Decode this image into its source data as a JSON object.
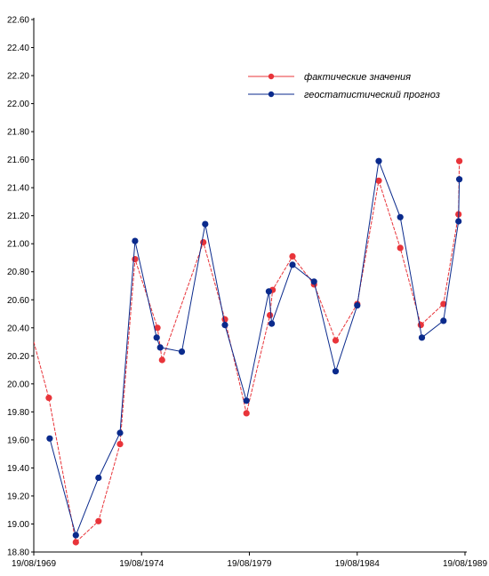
{
  "chart_data": {
    "type": "line",
    "title": "",
    "xlabel": "",
    "ylabel": "",
    "ylim": [
      18.8,
      22.6
    ],
    "y_ticks": [
      "18.80",
      "19.00",
      "19.20",
      "19.40",
      "19.60",
      "19.80",
      "20.00",
      "20.20",
      "20.40",
      "20.60",
      "20.80",
      "21.00",
      "21.20",
      "21.40",
      "21.60",
      "21.80",
      "22.00",
      "22.20",
      "22.40",
      "22.60"
    ],
    "xlim": [
      "1969-08-19",
      "1989-08-19"
    ],
    "x_ticks": [
      "19/08/1969",
      "19/08/1974",
      "19/08/1979",
      "19/08/1984",
      "19/08/1989"
    ],
    "grid": false,
    "legend_position": "top-right",
    "series": [
      {
        "name": "фактические значения",
        "color": "#e8343a",
        "points": [
          {
            "x": "1969-08-19",
            "y": 20.3
          },
          {
            "x": "1970-05-01",
            "y": 19.9
          },
          {
            "x": "1971-08-01",
            "y": 18.87
          },
          {
            "x": "1972-08-19",
            "y": 19.02
          },
          {
            "x": "1973-08-19",
            "y": 19.57
          },
          {
            "x": "1974-05-01",
            "y": 20.89
          },
          {
            "x": "1975-05-15",
            "y": 20.4
          },
          {
            "x": "1975-08-01",
            "y": 20.17
          },
          {
            "x": "1977-07-01",
            "y": 21.01
          },
          {
            "x": "1978-07-01",
            "y": 20.46
          },
          {
            "x": "1979-07-01",
            "y": 19.79
          },
          {
            "x": "1980-08-01",
            "y": 20.49
          },
          {
            "x": "1980-09-15",
            "y": 20.67
          },
          {
            "x": "1981-08-19",
            "y": 20.91
          },
          {
            "x": "1982-08-19",
            "y": 20.71
          },
          {
            "x": "1983-08-19",
            "y": 20.31
          },
          {
            "x": "1984-08-19",
            "y": 20.57
          },
          {
            "x": "1985-08-19",
            "y": 21.45
          },
          {
            "x": "1986-08-19",
            "y": 20.97
          },
          {
            "x": "1987-08-01",
            "y": 20.42
          },
          {
            "x": "1988-08-19",
            "y": 20.57
          },
          {
            "x": "1989-05-01",
            "y": 21.21
          },
          {
            "x": "1989-05-15",
            "y": 21.59
          }
        ]
      },
      {
        "name": "геостатистический прогноз",
        "color": "#0a2a8c",
        "points": [
          {
            "x": "1970-05-15",
            "y": 19.61
          },
          {
            "x": "1971-08-01",
            "y": 18.92
          },
          {
            "x": "1972-08-19",
            "y": 19.33
          },
          {
            "x": "1973-08-19",
            "y": 19.65
          },
          {
            "x": "1974-05-01",
            "y": 21.02
          },
          {
            "x": "1975-05-01",
            "y": 20.33
          },
          {
            "x": "1975-07-01",
            "y": 20.26
          },
          {
            "x": "1976-07-01",
            "y": 20.23
          },
          {
            "x": "1977-08-01",
            "y": 21.14
          },
          {
            "x": "1978-07-01",
            "y": 20.42
          },
          {
            "x": "1979-07-01",
            "y": 19.88
          },
          {
            "x": "1980-07-15",
            "y": 20.66
          },
          {
            "x": "1980-09-01",
            "y": 20.43
          },
          {
            "x": "1981-08-19",
            "y": 20.85
          },
          {
            "x": "1982-08-19",
            "y": 20.73
          },
          {
            "x": "1983-08-19",
            "y": 20.09
          },
          {
            "x": "1984-08-19",
            "y": 20.56
          },
          {
            "x": "1985-08-19",
            "y": 21.59
          },
          {
            "x": "1986-08-19",
            "y": 21.19
          },
          {
            "x": "1987-08-19",
            "y": 20.33
          },
          {
            "x": "1988-08-19",
            "y": 20.45
          },
          {
            "x": "1989-05-01",
            "y": 21.16
          },
          {
            "x": "1989-05-15",
            "y": 21.46
          }
        ]
      }
    ]
  }
}
